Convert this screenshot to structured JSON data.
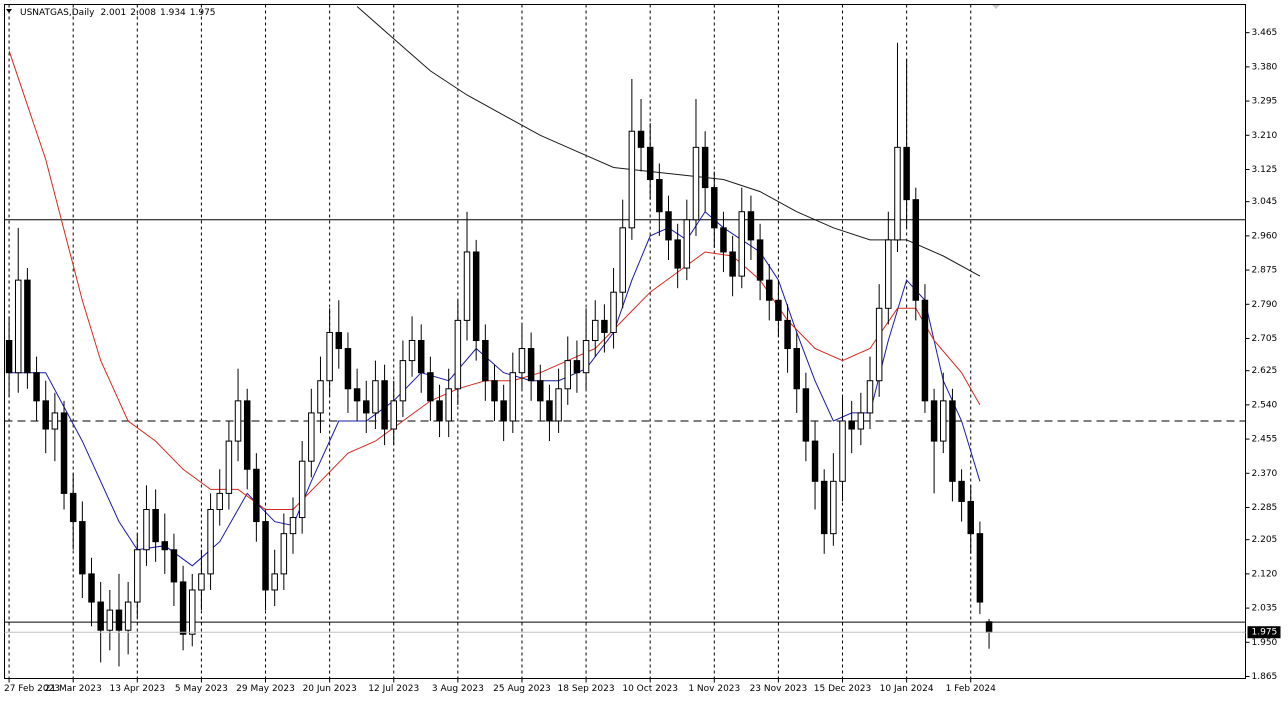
{
  "chart_data": {
    "type": "candlestick",
    "title": "USNATGAS,Daily",
    "header_values": [
      2.001,
      2.008,
      1.934,
      1.975
    ],
    "last_price": 1.975,
    "ylim": [
      1.86,
      3.535
    ],
    "yticks": [
      1.865,
      {
        "value": 1.95,
        "label": "1.950"
      },
      2.035,
      {
        "value": 2.12,
        "label": "2.120"
      },
      2.205,
      2.285,
      {
        "value": 2.37,
        "label": "2.370"
      },
      2.455,
      {
        "value": 2.54,
        "label": "2.540"
      },
      2.625,
      2.705,
      {
        "value": 2.79,
        "label": "2.790"
      },
      2.875,
      {
        "value": 2.96,
        "label": "2.960"
      },
      3.045,
      3.125,
      {
        "value": 3.21,
        "label": "3.210"
      },
      3.295,
      {
        "value": 3.38,
        "label": "3.380"
      },
      3.465
    ],
    "xlim": [
      -0.5,
      135
    ],
    "xticks": [
      {
        "value": 0,
        "label": "27 Feb 2023"
      },
      {
        "value": 7,
        "label": "21 Mar 2023"
      },
      {
        "value": 14,
        "label": "13 Apr 2023"
      },
      {
        "value": 21,
        "label": "5 May 2023"
      },
      {
        "value": 28,
        "label": "29 May 2023"
      },
      {
        "value": 35,
        "label": "20 Jun 2023"
      },
      {
        "value": 42,
        "label": "12 Jul 2023"
      },
      {
        "value": 49,
        "label": "3 Aug 2023"
      },
      {
        "value": 56,
        "label": "25 Aug 2023"
      },
      {
        "value": 63,
        "label": "18 Sep 2023"
      },
      {
        "value": 70,
        "label": "10 Oct 2023"
      },
      {
        "value": 77,
        "label": "1 Nov 2023"
      },
      {
        "value": 84,
        "label": "23 Nov 2023"
      },
      {
        "value": 91,
        "label": "15 Dec 2023"
      },
      {
        "value": 98,
        "label": "10 Jan 2024"
      },
      {
        "value": 105,
        "label": "1 Feb 2024"
      }
    ],
    "grid": true,
    "up_color": "#ffffff",
    "down_color": "#000000",
    "open": [
      2.7,
      2.62,
      2.85,
      2.62,
      2.55,
      2.48,
      2.52,
      2.32,
      2.25,
      2.12,
      2.05,
      1.98,
      2.03,
      1.98,
      2.05,
      2.18,
      2.28,
      2.2,
      2.18,
      2.1,
      1.97,
      2.08,
      2.12,
      2.28,
      2.32,
      2.45,
      2.55,
      2.38,
      2.25,
      2.08,
      2.12,
      2.22,
      2.26,
      2.4,
      2.52,
      2.6,
      2.72,
      2.68,
      2.58,
      2.55,
      2.52,
      2.6,
      2.48,
      2.55,
      2.65,
      2.7,
      2.62,
      2.55,
      2.5,
      2.58,
      2.75,
      2.92,
      2.7,
      2.6,
      2.55,
      2.5,
      2.62,
      2.68,
      2.6,
      2.55,
      2.5,
      2.58,
      2.65,
      2.62,
      2.7,
      2.75,
      2.72,
      2.82,
      2.98,
      3.22,
      3.18,
      3.1,
      3.02,
      2.95,
      2.88,
      3.0,
      3.18,
      3.08,
      2.98,
      2.92,
      2.86,
      3.02,
      2.95,
      2.85,
      2.8,
      2.75,
      2.68,
      2.58,
      2.45,
      2.35,
      2.22,
      2.35,
      2.5,
      2.48,
      2.52,
      2.6,
      2.78,
      2.95,
      3.18,
      3.05,
      2.8,
      2.55,
      2.45,
      2.55,
      2.35,
      2.3,
      2.22,
      2.001
    ],
    "high": [
      2.76,
      2.98,
      2.88,
      2.66,
      2.6,
      2.57,
      2.55,
      2.37,
      2.3,
      2.16,
      2.1,
      2.08,
      2.12,
      2.1,
      2.22,
      2.34,
      2.33,
      2.27,
      2.22,
      2.14,
      2.12,
      2.18,
      2.32,
      2.38,
      2.5,
      2.63,
      2.58,
      2.42,
      2.28,
      2.18,
      2.27,
      2.31,
      2.45,
      2.58,
      2.66,
      2.78,
      2.8,
      2.72,
      2.63,
      2.6,
      2.65,
      2.64,
      2.6,
      2.7,
      2.76,
      2.74,
      2.66,
      2.59,
      2.63,
      2.8,
      3.02,
      2.95,
      2.74,
      2.64,
      2.59,
      2.67,
      2.74,
      2.72,
      2.64,
      2.59,
      2.63,
      2.71,
      2.7,
      2.78,
      2.8,
      2.79,
      2.88,
      3.05,
      3.35,
      3.3,
      3.24,
      3.14,
      3.06,
      2.99,
      3.05,
      3.3,
      3.22,
      3.12,
      3.02,
      2.96,
      3.08,
      3.06,
      2.99,
      2.89,
      2.85,
      2.79,
      2.72,
      2.62,
      2.5,
      2.38,
      2.42,
      2.56,
      2.55,
      2.57,
      2.66,
      2.84,
      3.02,
      3.44,
      3.4,
      3.08,
      2.84,
      2.58,
      2.62,
      2.58,
      2.38,
      2.34,
      2.25,
      2.008
    ],
    "low": [
      2.56,
      2.57,
      2.58,
      2.5,
      2.42,
      2.4,
      2.28,
      2.18,
      2.06,
      1.99,
      1.9,
      1.93,
      1.89,
      1.92,
      2.01,
      2.14,
      2.15,
      2.12,
      2.04,
      1.93,
      1.94,
      2.03,
      2.08,
      2.24,
      2.28,
      2.4,
      2.33,
      2.2,
      2.03,
      2.04,
      2.08,
      2.17,
      2.22,
      2.36,
      2.47,
      2.56,
      2.63,
      2.52,
      2.5,
      2.47,
      2.48,
      2.44,
      2.44,
      2.51,
      2.61,
      2.57,
      2.5,
      2.46,
      2.46,
      2.54,
      2.7,
      2.65,
      2.55,
      2.5,
      2.45,
      2.47,
      2.58,
      2.55,
      2.5,
      2.45,
      2.47,
      2.54,
      2.57,
      2.58,
      2.66,
      2.67,
      2.68,
      2.78,
      2.95,
      3.12,
      3.05,
      2.96,
      2.9,
      2.83,
      2.85,
      2.96,
      3.02,
      2.93,
      2.87,
      2.81,
      2.83,
      2.9,
      2.8,
      2.75,
      2.71,
      2.62,
      2.52,
      2.4,
      2.28,
      2.17,
      2.19,
      2.3,
      2.42,
      2.44,
      2.48,
      2.56,
      2.74,
      2.92,
      2.98,
      2.75,
      2.52,
      2.32,
      2.42,
      2.3,
      2.25,
      2.17,
      2.02,
      1.934
    ],
    "close": [
      2.62,
      2.85,
      2.62,
      2.55,
      2.48,
      2.52,
      2.32,
      2.25,
      2.12,
      2.05,
      1.98,
      2.03,
      1.98,
      2.05,
      2.18,
      2.28,
      2.2,
      2.18,
      2.1,
      1.97,
      2.08,
      2.12,
      2.28,
      2.32,
      2.45,
      2.55,
      2.38,
      2.25,
      2.08,
      2.12,
      2.22,
      2.26,
      2.4,
      2.52,
      2.6,
      2.72,
      2.68,
      2.58,
      2.55,
      2.52,
      2.6,
      2.48,
      2.55,
      2.65,
      2.7,
      2.62,
      2.55,
      2.5,
      2.58,
      2.75,
      2.92,
      2.7,
      2.6,
      2.55,
      2.5,
      2.62,
      2.68,
      2.6,
      2.55,
      2.5,
      2.58,
      2.65,
      2.62,
      2.7,
      2.75,
      2.72,
      2.82,
      2.98,
      3.22,
      3.18,
      3.1,
      3.02,
      2.95,
      2.88,
      3.0,
      3.18,
      3.08,
      2.98,
      2.92,
      2.86,
      3.02,
      2.95,
      2.85,
      2.8,
      2.75,
      2.68,
      2.58,
      2.45,
      2.35,
      2.22,
      2.35,
      2.5,
      2.48,
      2.52,
      2.6,
      2.78,
      2.95,
      3.18,
      3.05,
      2.8,
      2.55,
      2.45,
      2.55,
      2.35,
      2.3,
      2.22,
      2.05,
      1.975
    ],
    "lines": [
      {
        "color": "#1a1aa6",
        "x": [
          0,
          4,
          8,
          12,
          14,
          17,
          20,
          23,
          26,
          29,
          31,
          33,
          36,
          39,
          42,
          45,
          48,
          51,
          54,
          57,
          60,
          63,
          66,
          68,
          70,
          72,
          74,
          76,
          78,
          80,
          82,
          84,
          86,
          88,
          90,
          92,
          94,
          96,
          98,
          100,
          102,
          104,
          106
        ],
        "values": [
          2.62,
          2.62,
          2.45,
          2.25,
          2.18,
          2.19,
          2.14,
          2.2,
          2.32,
          2.25,
          2.24,
          2.35,
          2.5,
          2.5,
          2.55,
          2.62,
          2.6,
          2.68,
          2.62,
          2.6,
          2.6,
          2.63,
          2.72,
          2.85,
          2.96,
          2.98,
          2.95,
          3.02,
          2.98,
          2.95,
          2.92,
          2.85,
          2.72,
          2.6,
          2.5,
          2.52,
          2.52,
          2.7,
          2.85,
          2.8,
          2.6,
          2.5,
          2.35
        ]
      },
      {
        "color": "#d42a1e",
        "x": [
          0,
          4,
          8,
          10,
          13,
          16,
          19,
          22,
          25,
          28,
          31,
          34,
          37,
          40,
          43,
          46,
          49,
          52,
          55,
          58,
          61,
          64,
          67,
          70,
          73,
          76,
          79,
          82,
          85,
          88,
          91,
          94,
          97,
          99,
          101,
          104,
          106
        ],
        "values": [
          3.42,
          3.15,
          2.8,
          2.65,
          2.5,
          2.45,
          2.38,
          2.33,
          2.33,
          2.28,
          2.28,
          2.35,
          2.42,
          2.45,
          2.5,
          2.55,
          2.58,
          2.6,
          2.6,
          2.62,
          2.65,
          2.68,
          2.75,
          2.82,
          2.87,
          2.92,
          2.91,
          2.85,
          2.75,
          2.68,
          2.65,
          2.68,
          2.78,
          2.78,
          2.7,
          2.62,
          2.54
        ]
      },
      {
        "color": "#1a1a1a",
        "x": [
          38,
          42,
          46,
          50,
          54,
          58,
          62,
          66,
          70,
          74,
          78,
          82,
          86,
          90,
          94,
          98,
          102,
          106
        ],
        "values": [
          3.53,
          3.45,
          3.37,
          3.31,
          3.26,
          3.21,
          3.17,
          3.13,
          3.12,
          3.11,
          3.1,
          3.07,
          3.02,
          2.98,
          2.95,
          2.95,
          2.91,
          2.86
        ]
      }
    ],
    "hlines": [
      {
        "value": 3.0,
        "dashed": false
      },
      {
        "value": 2.5,
        "dashed": true
      },
      {
        "value": 2.0,
        "dashed": false
      }
    ]
  }
}
